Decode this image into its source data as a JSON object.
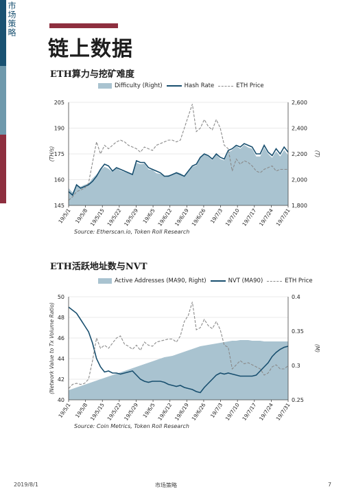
{
  "side_label": "市场策略",
  "page_title": "链上数据",
  "footer": {
    "date": "2019/8/1",
    "center": "市场策略",
    "page": "7"
  },
  "colors": {
    "area": "#a9c3d0",
    "line": "#174e6e",
    "dash": "#8a8a8a",
    "accent": "#8e2f3f"
  },
  "chart_data": [
    {
      "type": "line",
      "title": "ETH算力与挖矿难度",
      "legend": [
        "Difficulty (Right)",
        "Hash Rate",
        "ETH Price"
      ],
      "legend_position": "top",
      "source": "Source: Etherscan.io, Token Roll Research",
      "ylabel_left": "(TH/s)",
      "ylabel_right": "(T)",
      "x_ticks": [
        "19/5/1",
        "19/5/8",
        "19/5/15",
        "19/5/22",
        "19/5/29",
        "19/6/5",
        "19/6/12",
        "19/6/19",
        "19/6/26",
        "19/7/3",
        "19/7/10",
        "19/7/17",
        "19/7/24",
        "19/7/31"
      ],
      "y_left_ticks": [
        "145",
        "160",
        "175",
        "190",
        "205"
      ],
      "y_left_range": [
        145,
        205
      ],
      "y_right_ticks": [
        "1,800",
        "2,000",
        "2,200",
        "2,400",
        "2,600"
      ],
      "y_right_range": [
        1800,
        2600
      ],
      "series": [
        {
          "name": "Difficulty (Right)",
          "axis": "right",
          "style": "area",
          "values": [
            1935,
            1900,
            1960,
            1945,
            1960,
            1970,
            2010,
            2040,
            2075,
            2100,
            2085,
            2060,
            2090,
            2070,
            2060,
            2050,
            2040,
            2130,
            2120,
            2125,
            2080,
            2075,
            2050,
            2045,
            2030,
            2035,
            2040,
            2060,
            2050,
            2030,
            2060,
            2100,
            2110,
            2170,
            2200,
            2180,
            2150,
            2195,
            2160,
            2150,
            2210,
            2230,
            2260,
            2240,
            2270,
            2250,
            2240,
            2180,
            2180,
            2250,
            2200,
            2170,
            2220,
            2180,
            2230,
            2190
          ]
        },
        {
          "name": "Hash Rate",
          "axis": "left",
          "style": "line",
          "values": [
            153,
            151,
            157,
            155,
            156,
            157,
            159,
            162,
            166,
            169,
            168,
            165,
            167,
            166,
            165,
            164,
            163,
            171,
            170,
            170,
            167,
            166,
            165,
            164,
            162,
            162,
            163,
            164,
            163,
            162,
            165,
            168,
            169,
            173,
            175,
            174,
            172,
            175,
            173,
            172,
            177,
            178,
            180,
            179,
            181,
            180,
            179,
            175,
            175,
            180,
            176,
            174,
            178,
            175,
            179,
            176
          ]
        },
        {
          "name": "ETH Price",
          "axis": "left",
          "style": "dashed",
          "values": [
            148,
            150,
            153,
            154,
            155,
            158,
            170,
            182,
            175,
            180,
            178,
            180,
            182,
            183,
            182,
            180,
            179,
            178,
            176,
            179,
            178,
            177,
            180,
            181,
            182,
            183,
            183,
            182,
            183,
            190,
            197,
            204,
            188,
            190,
            195,
            191,
            189,
            195,
            190,
            180,
            178,
            165,
            172,
            169,
            171,
            170,
            168,
            165,
            164,
            166,
            167,
            168,
            165,
            166,
            166,
            166
          ]
        }
      ]
    },
    {
      "type": "line",
      "title": "ETH活跃地址数与NVT",
      "legend": [
        "Active Addresses (MA90, Right)",
        "NVT (MA90)",
        "ETH Price"
      ],
      "legend_position": "top",
      "source": "Source: Coin Metrics, Token Roll Research",
      "ylabel_left": "(Network Value to Tx Volume Ratio)",
      "ylabel_right": "(M)",
      "x_ticks": [
        "19/5/1",
        "19/5/8",
        "19/5/15",
        "19/5/22",
        "19/5/29",
        "19/6/5",
        "19/6/12",
        "19/6/19",
        "19/6/26",
        "19/7/3",
        "19/7/10",
        "19/7/17",
        "19/7/24",
        "19/7/31"
      ],
      "y_left_ticks": [
        "40",
        "42",
        "44",
        "46",
        "48",
        "50"
      ],
      "y_left_range": [
        40,
        50
      ],
      "y_right_ticks": [
        "0.25",
        "0.3",
        "0.35",
        "0.4"
      ],
      "y_right_range": [
        0.25,
        0.4
      ],
      "series": [
        {
          "name": "Active Addresses (MA90, Right)",
          "axis": "right",
          "style": "area",
          "values": [
            0.264,
            0.266,
            0.268,
            0.27,
            0.272,
            0.274,
            0.276,
            0.278,
            0.28,
            0.282,
            0.284,
            0.286,
            0.288,
            0.29,
            0.292,
            0.294,
            0.296,
            0.298,
            0.3,
            0.302,
            0.304,
            0.306,
            0.308,
            0.31,
            0.312,
            0.313,
            0.314,
            0.316,
            0.318,
            0.32,
            0.322,
            0.324,
            0.326,
            0.328,
            0.329,
            0.33,
            0.331,
            0.332,
            0.333,
            0.334,
            0.335,
            0.336,
            0.336,
            0.337,
            0.337,
            0.337,
            0.336,
            0.336,
            0.336,
            0.335,
            0.335,
            0.335,
            0.335,
            0.335,
            0.335,
            0.335
          ]
        },
        {
          "name": "NVT (MA90)",
          "axis": "left",
          "style": "line",
          "values": [
            49,
            48.7,
            48.4,
            47.8,
            47.2,
            46.6,
            45.5,
            44,
            43.2,
            42.7,
            42.8,
            42.6,
            42.6,
            42.5,
            42.6,
            42.7,
            42.8,
            42.4,
            42,
            41.8,
            41.7,
            41.8,
            41.8,
            41.8,
            41.7,
            41.5,
            41.4,
            41.3,
            41.4,
            41.2,
            41.1,
            41,
            40.8,
            40.7,
            41.2,
            41.6,
            42,
            42.4,
            42.6,
            42.5,
            42.6,
            42.5,
            42.4,
            42.3,
            42.3,
            42.3,
            42.3,
            42.4,
            42.8,
            43.2,
            43.6,
            44.2,
            44.6,
            44.9,
            45.1,
            45.2
          ]
        },
        {
          "name": "ETH Price",
          "axis": "left",
          "style": "dashed",
          "values": [
            41.1,
            41.5,
            41.6,
            41.5,
            41.6,
            42,
            43.8,
            46,
            45,
            45.3,
            45,
            45.5,
            46,
            46.2,
            45.4,
            45.2,
            44.9,
            45.3,
            44.8,
            45.6,
            45.3,
            45.2,
            45.6,
            45.7,
            45.8,
            45.9,
            45.9,
            45.6,
            46.2,
            47.6,
            48.2,
            49.5,
            46.8,
            47,
            47.8,
            47.2,
            46.9,
            47.6,
            46.8,
            45.3,
            45.1,
            43,
            43.4,
            43.8,
            43.5,
            43.6,
            43.4,
            43.2,
            43,
            42.4,
            42.6,
            43.2,
            43.4,
            43,
            43,
            43.3
          ]
        }
      ]
    }
  ]
}
